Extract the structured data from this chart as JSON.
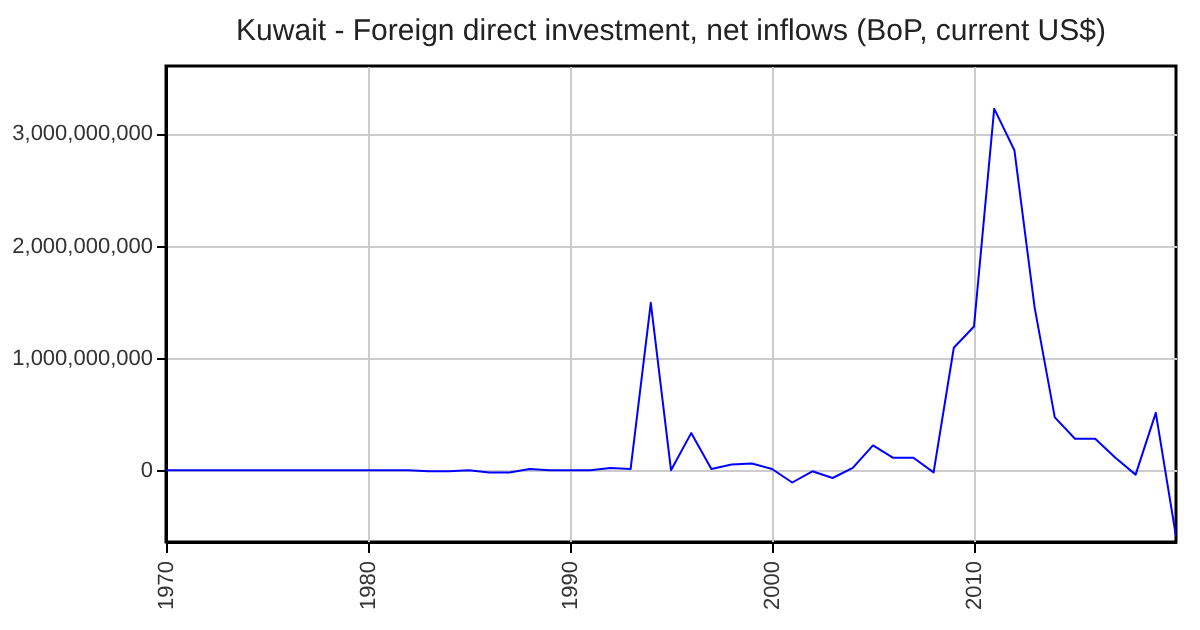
{
  "chart_data": {
    "type": "line",
    "title": "Kuwait - Foreign direct investment, net inflows (BoP, current US$)",
    "x": [
      1970,
      1971,
      1972,
      1973,
      1974,
      1975,
      1976,
      1977,
      1978,
      1979,
      1980,
      1981,
      1982,
      1983,
      1984,
      1985,
      1986,
      1987,
      1988,
      1989,
      1990,
      1991,
      1992,
      1993,
      1994,
      1995,
      1996,
      1997,
      1998,
      1999,
      2000,
      2001,
      2002,
      2003,
      2004,
      2005,
      2006,
      2007,
      2008,
      2009,
      2010,
      2011,
      2012,
      2013,
      2014,
      2015,
      2016,
      2017,
      2018,
      2019,
      2020
    ],
    "series": [
      {
        "color": "#0000ff",
        "values": [
          0,
          0,
          0,
          0,
          0,
          0,
          0,
          0,
          0,
          0,
          0,
          0,
          0,
          -10000000.0,
          -10000000.0,
          0,
          -20000000.0,
          -20000000.0,
          10000000.0,
          0,
          0,
          0,
          20000000.0,
          10000000.0,
          1490000000.0,
          0,
          330000000.0,
          10000000.0,
          50000000.0,
          60000000.0,
          10000000.0,
          -110000000.0,
          -10000000.0,
          -70000000.0,
          20000000.0,
          220000000.0,
          110000000.0,
          110000000.0,
          -20000000.0,
          1090000000.0,
          1280000000.0,
          3220000000.0,
          2850000000.0,
          1450000000.0,
          470000000.0,
          280000000.0,
          280000000.0,
          110000000.0,
          -40000000.0,
          510000000.0,
          -590000000.0
        ]
      }
    ],
    "xlim": [
      1970,
      2020
    ],
    "xticks": [
      1970,
      1980,
      1990,
      2000,
      2010
    ],
    "ylim": [
      -640000000,
      3600000000
    ],
    "yticks": [
      {
        "value": 0,
        "label": "0"
      },
      {
        "value": 1000000000,
        "label": "1,000,000,000"
      },
      {
        "value": 2000000000,
        "label": "2,000,000,000"
      },
      {
        "value": 3000000000,
        "label": "3,000,000,000"
      }
    ],
    "grid": true,
    "line_style": "solid",
    "marker": "none"
  }
}
